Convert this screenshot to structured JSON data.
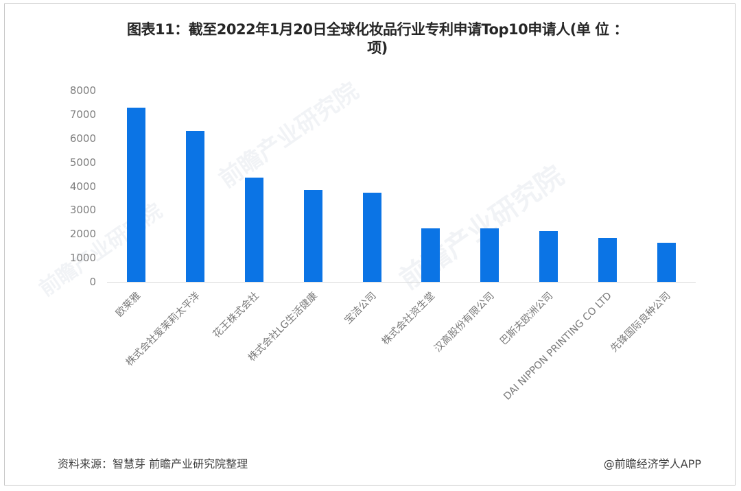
{
  "title": {
    "line1": "图表11：截至2022年1月20日全球化妆品行业专利申请Top10申请人(单 位 ：",
    "line2": "项)"
  },
  "colors": {
    "bar": "#0b74e5",
    "axis": "#d9d9d9",
    "tick_text": "#7f7f7f"
  },
  "footer": {
    "source": "资料来源：智慧芽 前瞻产业研究院整理",
    "credit": "@前瞻经济学人APP"
  },
  "watermark": "前瞻产业研究院",
  "chart_data": {
    "type": "bar",
    "title": "图表11：截至2022年1月20日全球化妆品行业专利申请Top10申请人(单位：项)",
    "xlabel": "",
    "ylabel": "",
    "ylim": [
      0,
      8000
    ],
    "yticks": [
      0,
      1000,
      2000,
      3000,
      4000,
      5000,
      6000,
      7000,
      8000
    ],
    "grid": false,
    "legend": null,
    "categories": [
      "欧莱雅",
      "株式会社爱茉莉太平洋",
      "花王株式会社",
      "株式会社LG生活健康",
      "宝洁公司",
      "株式会社资生堂",
      "汉高股份有限公司",
      "巴斯夫欧洲公司",
      "DAI NIPPON PRINTING CO LTD",
      "先锋国际良种公司"
    ],
    "values": [
      7280,
      6300,
      4360,
      3840,
      3730,
      2240,
      2240,
      2120,
      1830,
      1640
    ]
  }
}
